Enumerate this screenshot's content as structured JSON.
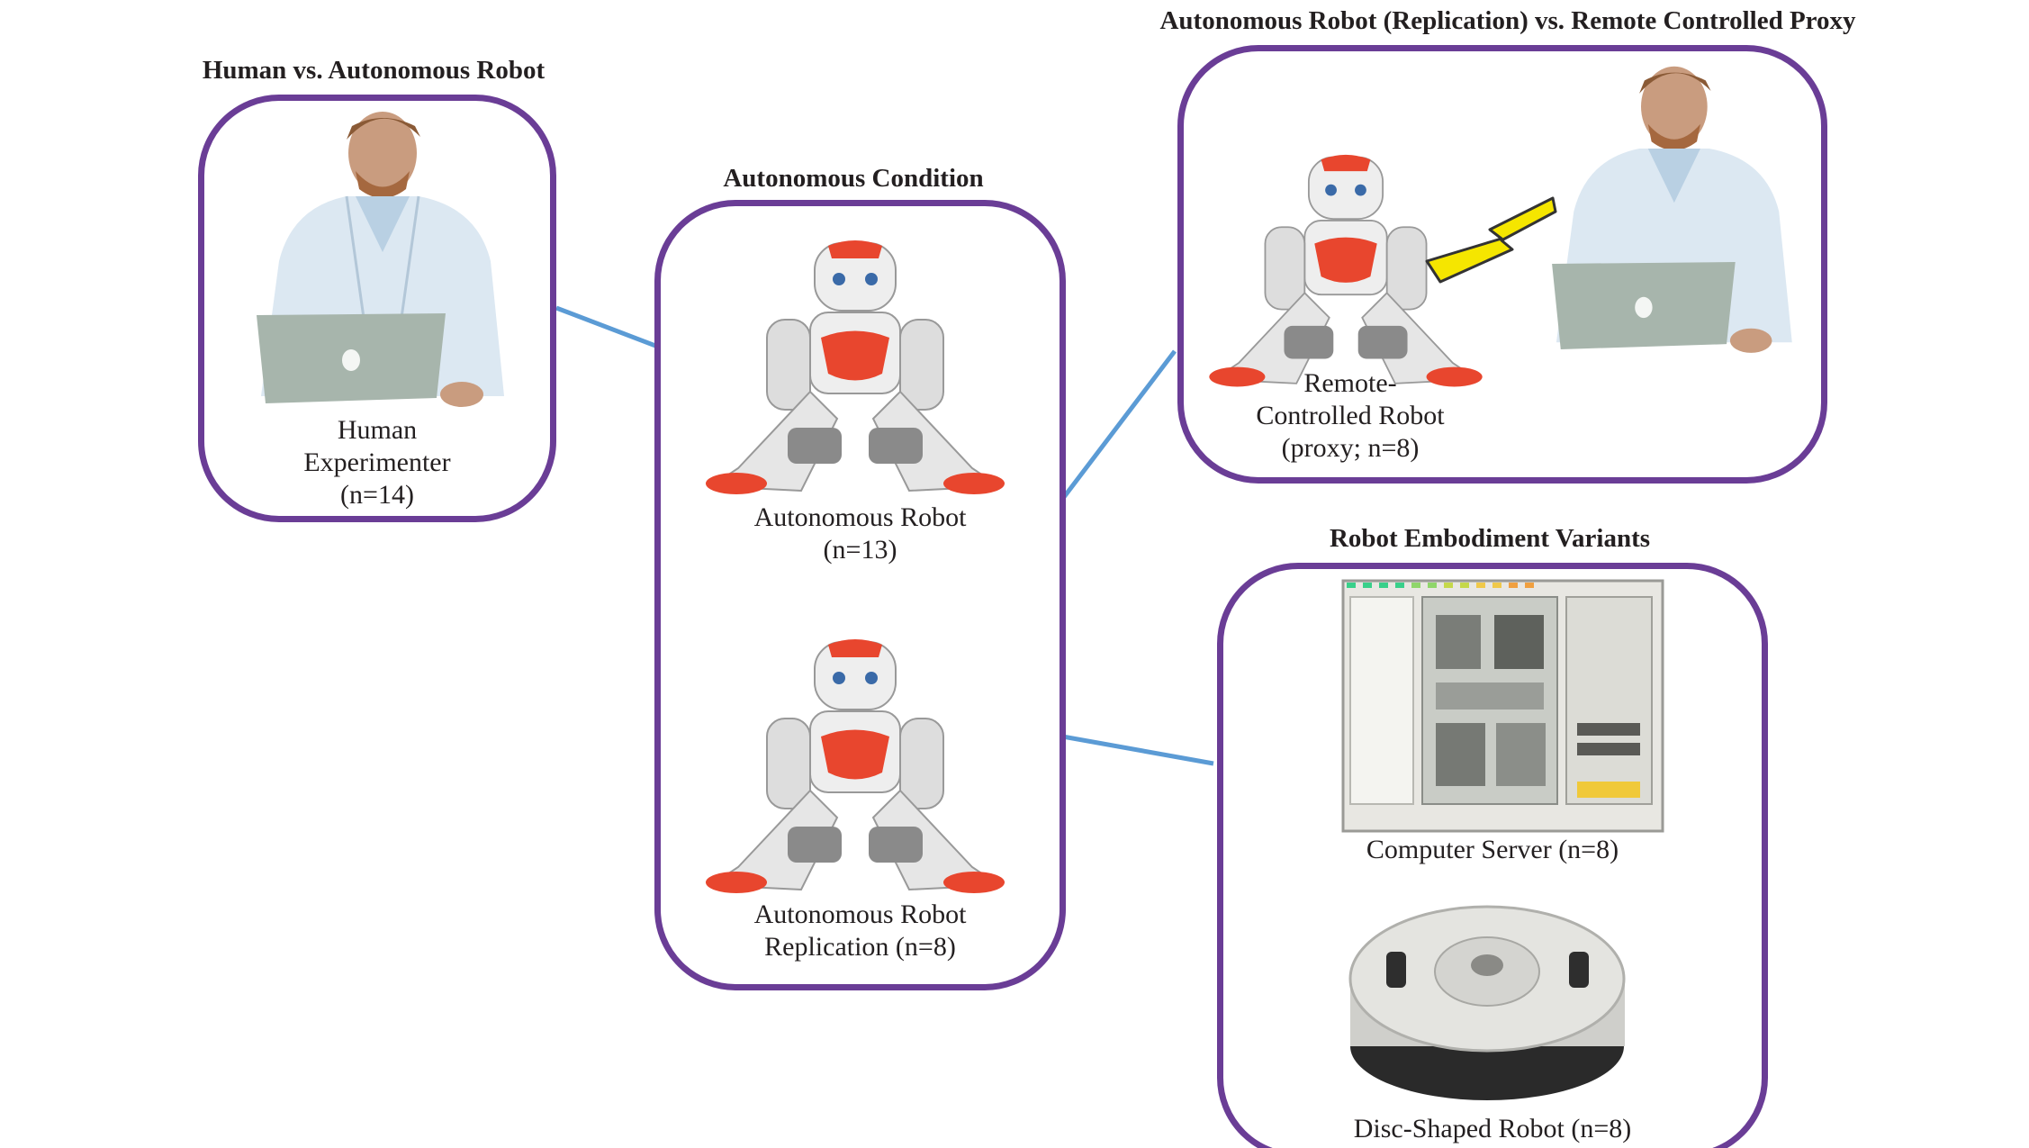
{
  "colors": {
    "panel_border": "#6a3d96",
    "connector": "#5b9bd5",
    "robot_accent": "#e8462e",
    "robot_body": "#eeeeee",
    "lab_coat": "#dce8f2",
    "laptop": "#a7b5ac",
    "lightning": "#f5e600"
  },
  "panels": {
    "human": {
      "title": "Human vs. Autonomous Robot",
      "caption_lines": [
        "Human",
        "Experimenter",
        "(n=14)"
      ],
      "figure_icon": "person-with-laptop-icon"
    },
    "autonomous": {
      "title": "Autonomous Condition",
      "robot1_lines": [
        "Autonomous Robot",
        "(n=13)"
      ],
      "robot2_lines": [
        "Autonomous Robot",
        "Replication (n=8)"
      ],
      "figure_icon": "humanoid-robot-icon"
    },
    "proxy": {
      "title": "Autonomous Robot (Replication) vs. Remote Controlled Proxy",
      "caption_lines": [
        "Remote-",
        "Controlled Robot",
        "(proxy; n=8)"
      ],
      "figure_icons": [
        "humanoid-robot-icon",
        "lightning-bolt-icon",
        "person-with-laptop-icon"
      ]
    },
    "variants": {
      "title": "Robot Embodiment Variants",
      "server_caption": "Computer Server (n=8)",
      "disc_caption": "Disc-Shaped Robot (n=8)",
      "figure_icons": [
        "computer-server-icon",
        "disc-robot-icon"
      ]
    }
  }
}
